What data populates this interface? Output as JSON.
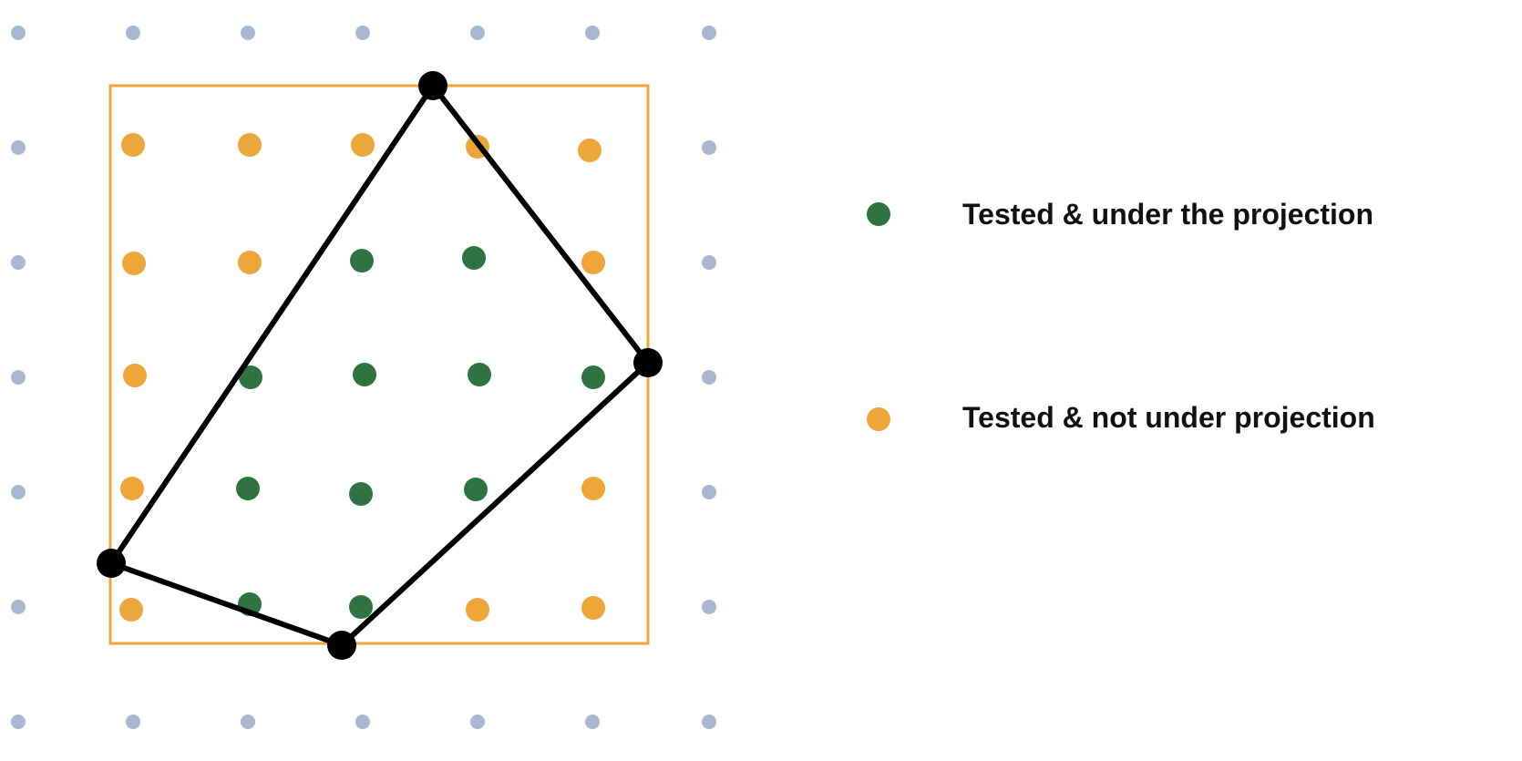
{
  "colors": {
    "background_grid_point": "#a9b7d1",
    "inside_projection": "#2e7341",
    "outside_projection": "#eda63a",
    "bounding_box": "#eda63a",
    "polygon": "#000000"
  },
  "legend": {
    "items": [
      {
        "marker_color": "#2e7341",
        "label": "Tested & under the projection"
      },
      {
        "marker_color": "#eda63a",
        "label": "Tested & not under projection"
      }
    ]
  }
}
